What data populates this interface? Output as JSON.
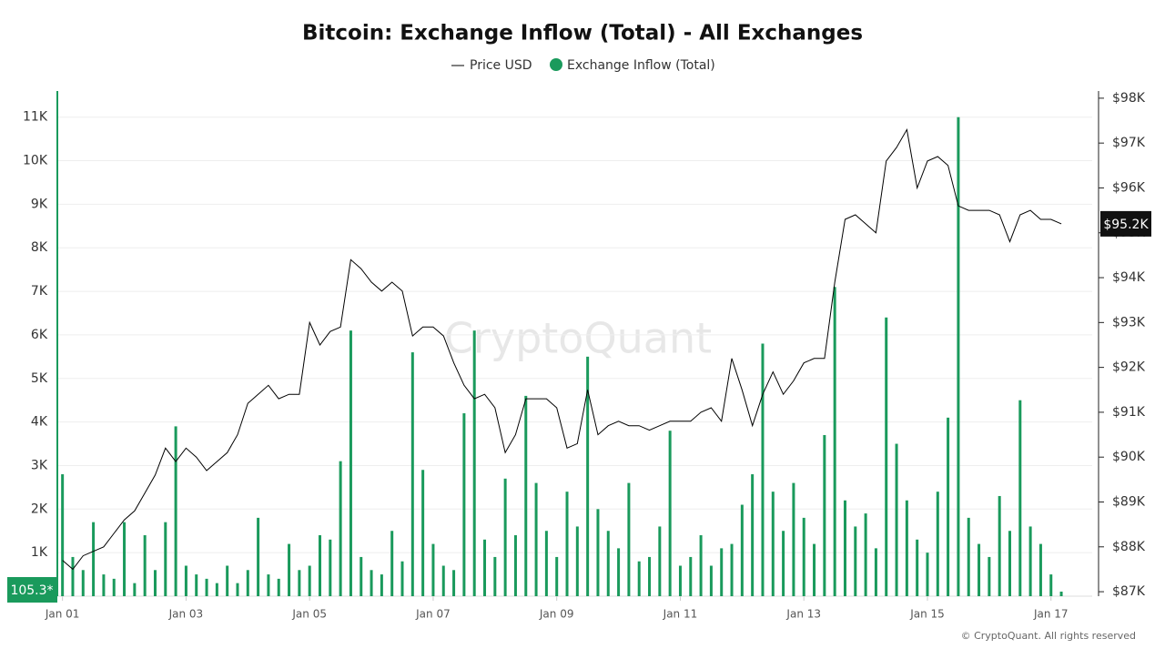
{
  "chart_data": {
    "type": "bar",
    "title": "Bitcoin: Exchange Inflow (Total) - All Exchanges",
    "watermark": "CryptoQuant",
    "footer": "© CryptoQuant. All rights reserved",
    "x": [
      0,
      4,
      8,
      12,
      16,
      20,
      24,
      28,
      32,
      36,
      40,
      44,
      48,
      52,
      56,
      60,
      64,
      68,
      72,
      76,
      80,
      84,
      88,
      92,
      96,
      100,
      104,
      108,
      112,
      116,
      120,
      124,
      128,
      132,
      136,
      140,
      144,
      148,
      152,
      156,
      160,
      164,
      168,
      172,
      176,
      180,
      184,
      188,
      192,
      196,
      200,
      204,
      208,
      212,
      216,
      220,
      224,
      228,
      232,
      236,
      240,
      244,
      248,
      252,
      256,
      260,
      264,
      268,
      272,
      276,
      280,
      284,
      288,
      292,
      296,
      300,
      304,
      308,
      312,
      316,
      320,
      324,
      328,
      332,
      336,
      340,
      344,
      348,
      352,
      356,
      360,
      364,
      368,
      372,
      376,
      380,
      384,
      388
    ],
    "xlim": [
      -2,
      400
    ],
    "xticks": [
      {
        "value": 0,
        "label": "Jan 01"
      },
      {
        "value": 48,
        "label": "Jan 03"
      },
      {
        "value": 96,
        "label": "Jan 05"
      },
      {
        "value": 144,
        "label": "Jan 07"
      },
      {
        "value": 192,
        "label": "Jan 09"
      },
      {
        "value": 240,
        "label": "Jan 11"
      },
      {
        "value": 288,
        "label": "Jan 13"
      },
      {
        "value": 336,
        "label": "Jan 15"
      },
      {
        "value": 384,
        "label": "Jan 17"
      }
    ],
    "ylim": [
      0,
      11600
    ],
    "yticks": [
      {
        "value": 1000,
        "label": "1K"
      },
      {
        "value": 2000,
        "label": "2K"
      },
      {
        "value": 3000,
        "label": "3K"
      },
      {
        "value": 4000,
        "label": "4K"
      },
      {
        "value": 5000,
        "label": "5K"
      },
      {
        "value": 6000,
        "label": "6K"
      },
      {
        "value": 7000,
        "label": "7K"
      },
      {
        "value": 8000,
        "label": "8K"
      },
      {
        "value": 9000,
        "label": "9K"
      },
      {
        "value": 10000,
        "label": "10K"
      },
      {
        "value": 11000,
        "label": "11K"
      }
    ],
    "y2lim": [
      86900,
      98160
    ],
    "y2ticks": [
      {
        "value": 87000,
        "label": "$87K"
      },
      {
        "value": 88000,
        "label": "$88K"
      },
      {
        "value": 89000,
        "label": "$89K"
      },
      {
        "value": 90000,
        "label": "$90K"
      },
      {
        "value": 91000,
        "label": "$91K"
      },
      {
        "value": 92000,
        "label": "$92K"
      },
      {
        "value": 93000,
        "label": "$93K"
      },
      {
        "value": 94000,
        "label": "$94K"
      },
      {
        "value": 95000,
        "label": "$95K"
      },
      {
        "value": 96000,
        "label": "$96K"
      },
      {
        "value": 97000,
        "label": "$97K"
      },
      {
        "value": 98000,
        "label": "$98K"
      }
    ],
    "grid": true,
    "series": [
      {
        "name": "Price USD",
        "type": "line",
        "color": "#000000",
        "axis": "y2",
        "values": [
          87700,
          87500,
          87800,
          87900,
          88000,
          88300,
          88600,
          88800,
          89200,
          89600,
          90200,
          89900,
          90200,
          90000,
          89700,
          89900,
          90100,
          90500,
          91200,
          91400,
          91600,
          91300,
          91400,
          91400,
          93000,
          92500,
          92800,
          92900,
          94400,
          94200,
          93900,
          93700,
          93900,
          93700,
          92700,
          92900,
          92900,
          92700,
          92100,
          91600,
          91300,
          91400,
          91100,
          90100,
          90500,
          91300,
          91300,
          91300,
          91100,
          90200,
          90300,
          91500,
          90500,
          90700,
          90800,
          90700,
          90700,
          90600,
          90700,
          90800,
          90800,
          90800,
          91000,
          91100,
          90800,
          92200,
          91500,
          90700,
          91400,
          91900,
          91400,
          91700,
          92100,
          92200,
          92200,
          93900,
          95300,
          95400,
          95200,
          95000,
          96600,
          96900,
          97300,
          96000,
          96600,
          96700,
          96500,
          95600,
          95500,
          95500,
          95500,
          95400,
          94800,
          95400,
          95500,
          95300,
          95300,
          95200
        ],
        "last_label": "$95.2K"
      },
      {
        "name": "Exchange Inflow (Total)",
        "type": "bar",
        "color": "#1a9a5c",
        "values": [
          2800,
          900,
          600,
          1700,
          500,
          400,
          1700,
          300,
          1400,
          600,
          1700,
          3900,
          700,
          500,
          400,
          300,
          700,
          300,
          600,
          1800,
          500,
          400,
          1200,
          600,
          700,
          1400,
          1300,
          3100,
          6100,
          900,
          600,
          500,
          1500,
          800,
          5600,
          2900,
          1200,
          700,
          600,
          4200,
          6100,
          1300,
          900,
          2700,
          1400,
          4600,
          2600,
          1500,
          900,
          2400,
          1600,
          5500,
          2000,
          1500,
          1100,
          2600,
          800,
          900,
          1600,
          3800,
          700,
          900,
          1400,
          700,
          1100,
          1200,
          2100,
          2800,
          5800,
          2400,
          1500,
          2600,
          1800,
          1200,
          3700,
          7100,
          2200,
          1600,
          1900,
          1100,
          6400,
          3500,
          2200,
          1300,
          1000,
          2400,
          4100,
          11000,
          1800,
          1200,
          900,
          2300,
          1500,
          4500,
          1600,
          1200,
          500,
          105.3
        ],
        "last_label": "105.3*"
      }
    ]
  }
}
